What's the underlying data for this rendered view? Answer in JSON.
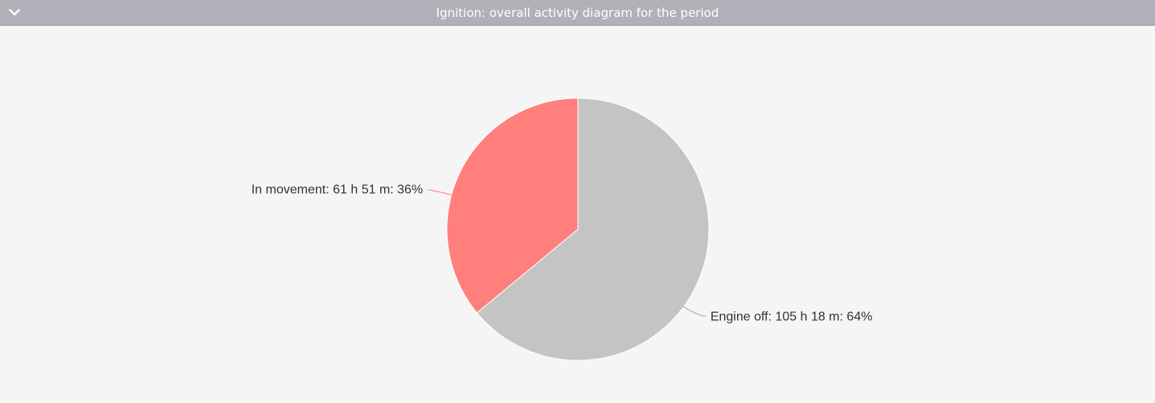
{
  "header": {
    "title": "Ignition: overall activity diagram for the period",
    "collapse_icon": "chevron-down-icon"
  },
  "chart_data": {
    "type": "pie",
    "title": "",
    "series": [
      {
        "name": "",
        "slices": [
          {
            "label": "Engine off",
            "display": "Engine off: 105 h 18 m: 64%",
            "duration": "105 h 18 m",
            "percent": 64,
            "color": "#c4c4c4"
          },
          {
            "label": "In movement",
            "display": "In movement: 61 h 51 m: 36%",
            "duration": "61 h 51 m",
            "percent": 36,
            "color": "#ff7f7d"
          }
        ]
      }
    ],
    "start_angle": "12 o'clock",
    "direction": "clockwise",
    "legend": "none"
  }
}
